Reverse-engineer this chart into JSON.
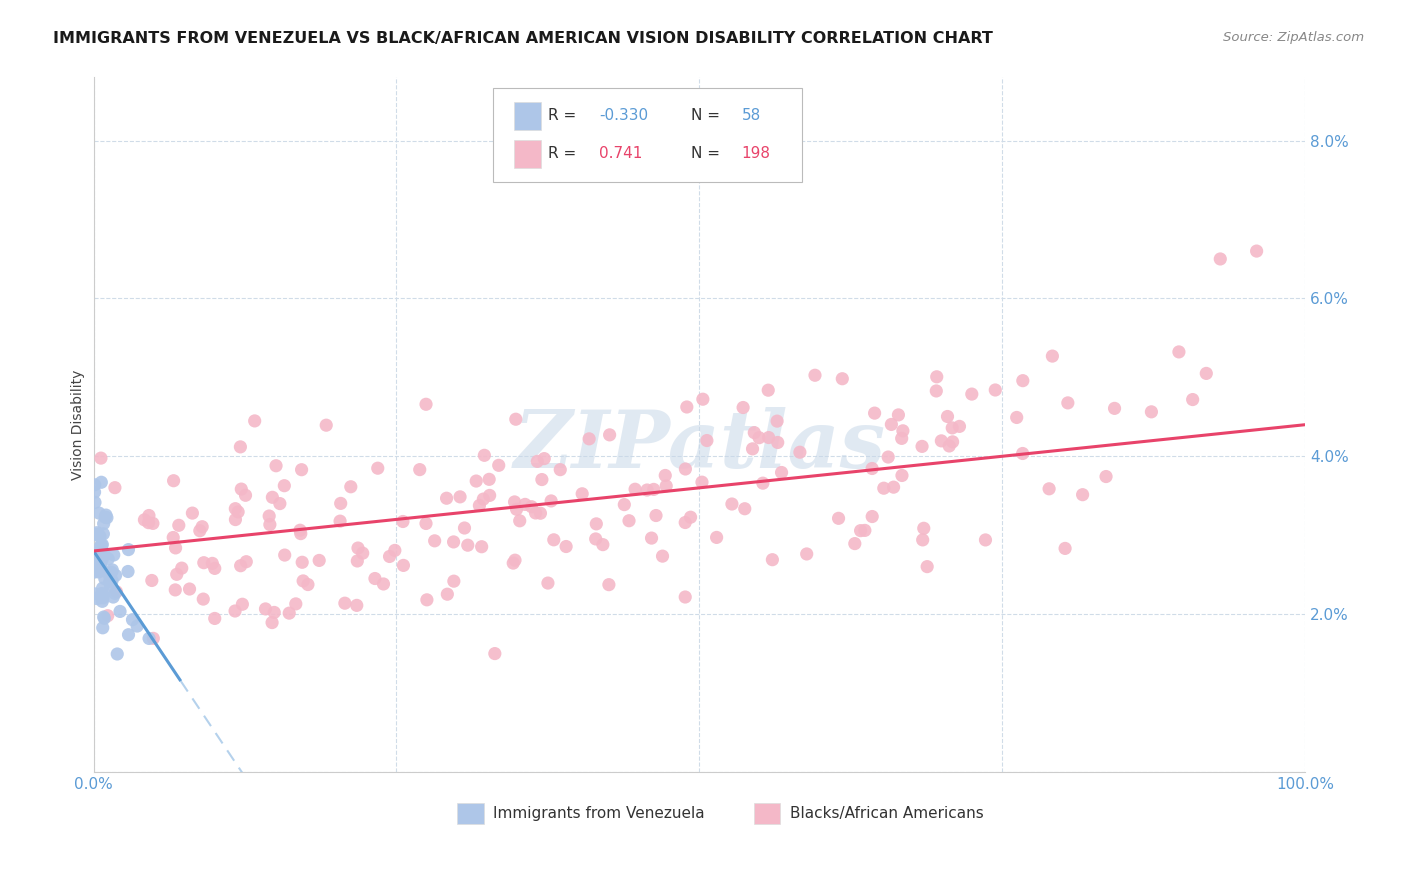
{
  "title": "IMMIGRANTS FROM VENEZUELA VS BLACK/AFRICAN AMERICAN VISION DISABILITY CORRELATION CHART",
  "source": "Source: ZipAtlas.com",
  "ylabel": "Vision Disability",
  "xlim": [
    0,
    1.0
  ],
  "ylim": [
    0,
    0.088
  ],
  "yticks": [
    0.0,
    0.02,
    0.04,
    0.06,
    0.08
  ],
  "ytick_labels": [
    "",
    "2.0%",
    "4.0%",
    "6.0%",
    "8.0%"
  ],
  "blue_R": "-0.330",
  "blue_N": "58",
  "pink_R": "0.741",
  "pink_N": "198",
  "blue_color": "#5b9bd5",
  "pink_color": "#e8436a",
  "blue_scatter_color": "#aec6e8",
  "pink_scatter_color": "#f4b8c8",
  "watermark": "ZIPatlas",
  "background_color": "#ffffff",
  "grid_color": "#d0dce8",
  "legend_blue_label": "Immigrants from Venezuela",
  "legend_pink_label": "Blacks/African Americans",
  "title_fontsize": 11.5,
  "axis_label_fontsize": 10,
  "tick_fontsize": 11
}
